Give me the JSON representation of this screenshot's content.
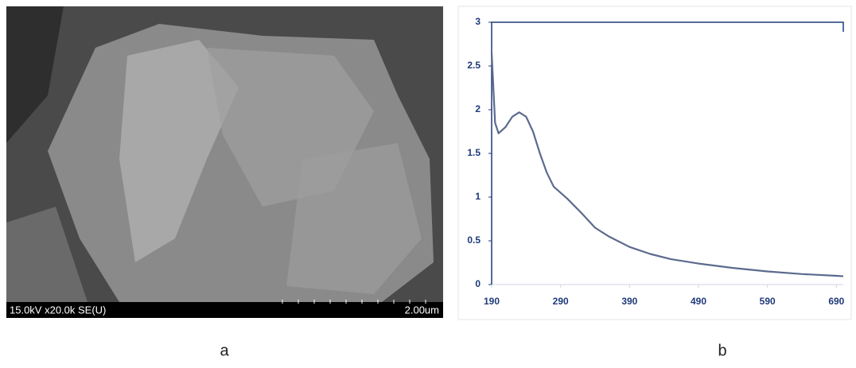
{
  "image": {
    "info": "15.0kV x20.0k SE(U)",
    "scale": "2.00um"
  },
  "panels": [
    "a",
    "b"
  ],
  "chart_data": {
    "type": "line",
    "x": [
      190,
      195,
      200,
      210,
      220,
      230,
      240,
      250,
      260,
      270,
      280,
      300,
      320,
      340,
      360,
      390,
      420,
      450,
      490,
      540,
      590,
      640,
      690,
      700
    ],
    "series": [
      {
        "name": null,
        "color": "#5b6a8e",
        "values": [
          2.65,
          1.85,
          1.73,
          1.8,
          1.92,
          1.97,
          1.92,
          1.75,
          1.5,
          1.28,
          1.12,
          0.98,
          0.82,
          0.65,
          0.55,
          0.43,
          0.35,
          0.29,
          0.24,
          0.19,
          0.15,
          0.12,
          0.1,
          0.095
        ]
      }
    ],
    "xlim": [
      190,
      700
    ],
    "xticks": [
      190,
      290,
      390,
      490,
      590,
      690
    ],
    "ylim": [
      0,
      3
    ],
    "yticks": [
      0,
      0.5,
      1,
      1.5,
      2,
      2.5,
      3
    ]
  }
}
